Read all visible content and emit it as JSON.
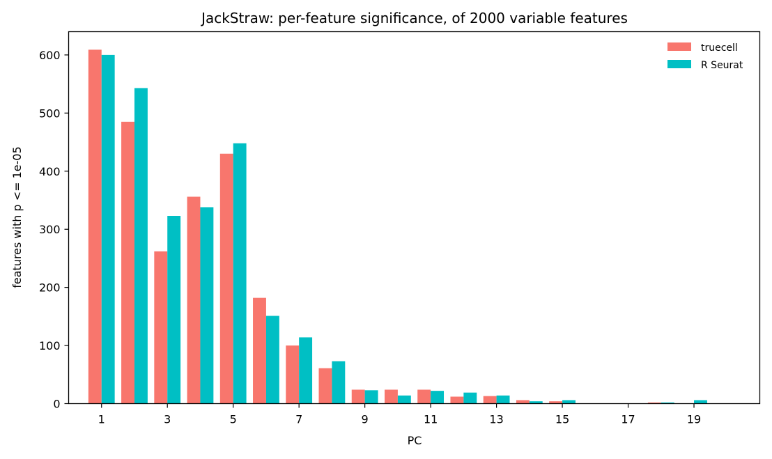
{
  "chart_data": {
    "type": "bar",
    "title": "JackStraw: per-feature significance, of 2000 variable features",
    "xlabel": "PC",
    "ylabel": "features with p <= 1e-05",
    "categories": [
      1,
      2,
      3,
      4,
      5,
      6,
      7,
      8,
      9,
      10,
      11,
      12,
      13,
      14,
      15,
      16,
      17,
      18,
      19,
      20
    ],
    "x_tick_labels": [
      "1",
      "3",
      "5",
      "7",
      "9",
      "11",
      "13",
      "15",
      "17",
      "19"
    ],
    "y_tick_labels": [
      "0",
      "100",
      "200",
      "300",
      "400",
      "500",
      "600"
    ],
    "ylim": [
      0,
      640
    ],
    "xlim": [
      0,
      21
    ],
    "grid": false,
    "legend_position": "top-right",
    "series": [
      {
        "name": "truecell",
        "color": "#f8766d",
        "values": [
          609,
          485,
          262,
          356,
          430,
          182,
          100,
          61,
          24,
          24,
          24,
          12,
          13,
          6,
          4,
          0,
          0,
          2,
          0,
          0
        ]
      },
      {
        "name": "R Seurat",
        "color": "#00bfc4",
        "values": [
          600,
          543,
          323,
          338,
          448,
          151,
          114,
          73,
          23,
          14,
          22,
          19,
          14,
          4,
          6,
          0,
          0,
          2,
          6,
          0
        ]
      }
    ]
  }
}
